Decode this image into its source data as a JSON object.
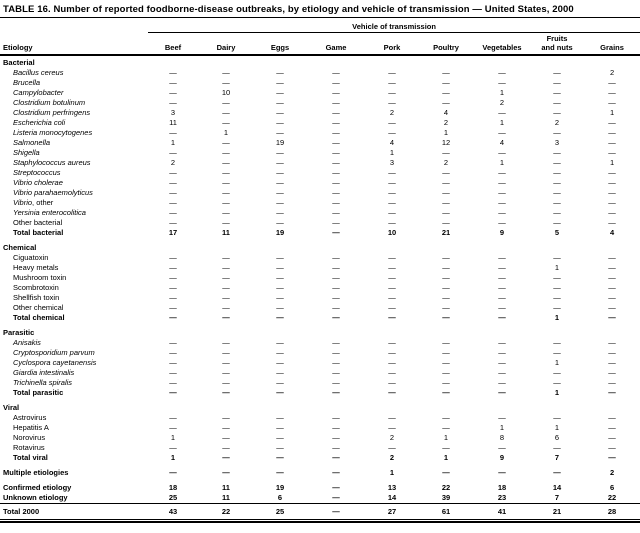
{
  "title": "TABLE 16. Number of reported foodborne-disease outbreaks, by etiology and vehicle of transmission — United States, 2000",
  "table": {
    "spanner": "Vehicle of transmission",
    "etiology_header": "Etiology",
    "columns": [
      {
        "label": "Beef"
      },
      {
        "label": "Dairy"
      },
      {
        "label": "Eggs"
      },
      {
        "label": "Game"
      },
      {
        "label": "Pork"
      },
      {
        "label": "Poultry"
      },
      {
        "label": "Vegetables"
      },
      {
        "label": "Fruits",
        "label2": "and nuts"
      },
      {
        "label": "Grains"
      }
    ],
    "na_symbol": "—",
    "rows": [
      {
        "type": "section",
        "label": "Bacterial"
      },
      {
        "type": "item",
        "em": "Bacillus cereus",
        "values": [
          "—",
          "—",
          "—",
          "—",
          "—",
          "—",
          "—",
          "—",
          "2"
        ]
      },
      {
        "type": "item",
        "em": "Brucella",
        "values": [
          "—",
          "—",
          "—",
          "—",
          "—",
          "—",
          "—",
          "—",
          "—"
        ]
      },
      {
        "type": "item",
        "em": "Campylobacter",
        "values": [
          "—",
          "10",
          "—",
          "—",
          "—",
          "—",
          "1",
          "—",
          "—"
        ]
      },
      {
        "type": "item",
        "em": "Clostridium botulinum",
        "values": [
          "—",
          "—",
          "—",
          "—",
          "—",
          "—",
          "2",
          "—",
          "—"
        ]
      },
      {
        "type": "item",
        "em": "Clostridium perfringens",
        "values": [
          "3",
          "—",
          "—",
          "—",
          "2",
          "4",
          "—",
          "—",
          "1"
        ]
      },
      {
        "type": "item",
        "em": "Escherichia coli",
        "values": [
          "11",
          "—",
          "—",
          "—",
          "—",
          "2",
          "1",
          "2",
          "—"
        ]
      },
      {
        "type": "item",
        "em": "Listeria monocytogenes",
        "values": [
          "—",
          "1",
          "—",
          "—",
          "—",
          "1",
          "—",
          "—",
          "—"
        ]
      },
      {
        "type": "item",
        "em": "Salmonella",
        "values": [
          "1",
          "—",
          "19",
          "—",
          "4",
          "12",
          "4",
          "3",
          "—"
        ]
      },
      {
        "type": "item",
        "em": "Shigella",
        "values": [
          "—",
          "—",
          "—",
          "—",
          "1",
          "—",
          "—",
          "—",
          "—"
        ]
      },
      {
        "type": "item",
        "em": "Staphylococcus aureus",
        "values": [
          "2",
          "—",
          "—",
          "—",
          "3",
          "2",
          "1",
          "—",
          "1"
        ]
      },
      {
        "type": "item",
        "em": "Streptococcus",
        "values": [
          "—",
          "—",
          "—",
          "—",
          "—",
          "—",
          "—",
          "—",
          "—"
        ]
      },
      {
        "type": "item",
        "em": "Vibrio cholerae",
        "values": [
          "—",
          "—",
          "—",
          "—",
          "—",
          "—",
          "—",
          "—",
          "—"
        ]
      },
      {
        "type": "item",
        "em": "Vibrio parahaemolyticus",
        "values": [
          "—",
          "—",
          "—",
          "—",
          "—",
          "—",
          "—",
          "—",
          "—"
        ]
      },
      {
        "type": "item",
        "em": "Vibrio",
        "label": ", other",
        "values": [
          "—",
          "—",
          "—",
          "—",
          "—",
          "—",
          "—",
          "—",
          "—"
        ]
      },
      {
        "type": "item",
        "em": "Yersinia enterocolitica",
        "values": [
          "—",
          "—",
          "—",
          "—",
          "—",
          "—",
          "—",
          "—",
          "—"
        ]
      },
      {
        "type": "item",
        "label": "Other bacterial",
        "values": [
          "—",
          "—",
          "—",
          "—",
          "—",
          "—",
          "—",
          "—",
          "—"
        ]
      },
      {
        "type": "total",
        "label": "Total bacterial",
        "values": [
          "17",
          "11",
          "19",
          "—",
          "10",
          "21",
          "9",
          "5",
          "4"
        ]
      },
      {
        "type": "section",
        "gap": true,
        "label": "Chemical"
      },
      {
        "type": "item",
        "label": "Ciguatoxin",
        "values": [
          "—",
          "—",
          "—",
          "—",
          "—",
          "—",
          "—",
          "—",
          "—"
        ]
      },
      {
        "type": "item",
        "label": "Heavy metals",
        "values": [
          "—",
          "—",
          "—",
          "—",
          "—",
          "—",
          "—",
          "1",
          "—"
        ]
      },
      {
        "type": "item",
        "label": "Mushroom toxin",
        "values": [
          "—",
          "—",
          "—",
          "—",
          "—",
          "—",
          "—",
          "—",
          "—"
        ]
      },
      {
        "type": "item",
        "label": "Scombrotoxin",
        "values": [
          "—",
          "—",
          "—",
          "—",
          "—",
          "—",
          "—",
          "—",
          "—"
        ]
      },
      {
        "type": "item",
        "label": "Shellfish toxin",
        "values": [
          "—",
          "—",
          "—",
          "—",
          "—",
          "—",
          "—",
          "—",
          "—"
        ]
      },
      {
        "type": "item",
        "label": "Other chemical",
        "values": [
          "—",
          "—",
          "—",
          "—",
          "—",
          "—",
          "—",
          "—",
          "—"
        ]
      },
      {
        "type": "total",
        "label": "Total chemical",
        "values": [
          "—",
          "—",
          "—",
          "—",
          "—",
          "—",
          "—",
          "1",
          "—"
        ]
      },
      {
        "type": "section",
        "gap": true,
        "label": "Parasitic"
      },
      {
        "type": "item",
        "em": "Anisakis",
        "values": [
          "—",
          "—",
          "—",
          "—",
          "—",
          "—",
          "—",
          "—",
          "—"
        ]
      },
      {
        "type": "item",
        "em": "Cryptosporidium parvum",
        "values": [
          "—",
          "—",
          "—",
          "—",
          "—",
          "—",
          "—",
          "—",
          "—"
        ]
      },
      {
        "type": "item",
        "em": "Cyclospora cayetanensis",
        "values": [
          "—",
          "—",
          "—",
          "—",
          "—",
          "—",
          "—",
          "1",
          "—"
        ]
      },
      {
        "type": "item",
        "em": "Giardia intestinalis",
        "values": [
          "—",
          "—",
          "—",
          "—",
          "—",
          "—",
          "—",
          "—",
          "—"
        ]
      },
      {
        "type": "item",
        "em": "Trichinella spiralis",
        "values": [
          "—",
          "—",
          "—",
          "—",
          "—",
          "—",
          "—",
          "—",
          "—"
        ]
      },
      {
        "type": "total",
        "label": "Total parasitic",
        "values": [
          "—",
          "—",
          "—",
          "—",
          "—",
          "—",
          "—",
          "1",
          "—"
        ]
      },
      {
        "type": "section",
        "gap": true,
        "label": "Viral"
      },
      {
        "type": "item",
        "label": "Astrovirus",
        "values": [
          "—",
          "—",
          "—",
          "—",
          "—",
          "—",
          "—",
          "—",
          "—"
        ]
      },
      {
        "type": "item",
        "label": "Hepatitis A",
        "values": [
          "—",
          "—",
          "—",
          "—",
          "—",
          "—",
          "1",
          "1",
          "—"
        ]
      },
      {
        "type": "item",
        "label": "Norovirus",
        "values": [
          "1",
          "—",
          "—",
          "—",
          "2",
          "1",
          "8",
          "6",
          "—"
        ]
      },
      {
        "type": "item",
        "label": "Rotavirus",
        "values": [
          "—",
          "—",
          "—",
          "—",
          "—",
          "—",
          "—",
          "—",
          "—"
        ]
      },
      {
        "type": "total",
        "label": "Total viral",
        "values": [
          "1",
          "—",
          "—",
          "—",
          "2",
          "1",
          "9",
          "7",
          "—"
        ]
      },
      {
        "type": "summary",
        "gap": true,
        "label": "Multiple etiologies",
        "values": [
          "—",
          "—",
          "—",
          "—",
          "1",
          "—",
          "—",
          "—",
          "2"
        ]
      },
      {
        "type": "summary",
        "gap": true,
        "label": "Confirmed etiology",
        "values": [
          "18",
          "11",
          "19",
          "—",
          "13",
          "22",
          "18",
          "14",
          "6"
        ]
      },
      {
        "type": "summary",
        "label": "Unknown etiology",
        "values": [
          "25",
          "11",
          "6",
          "—",
          "14",
          "39",
          "23",
          "7",
          "22"
        ]
      },
      {
        "type": "grand",
        "label": "Total 2000",
        "values": [
          "43",
          "22",
          "25",
          "—",
          "27",
          "61",
          "41",
          "21",
          "28"
        ]
      }
    ]
  }
}
